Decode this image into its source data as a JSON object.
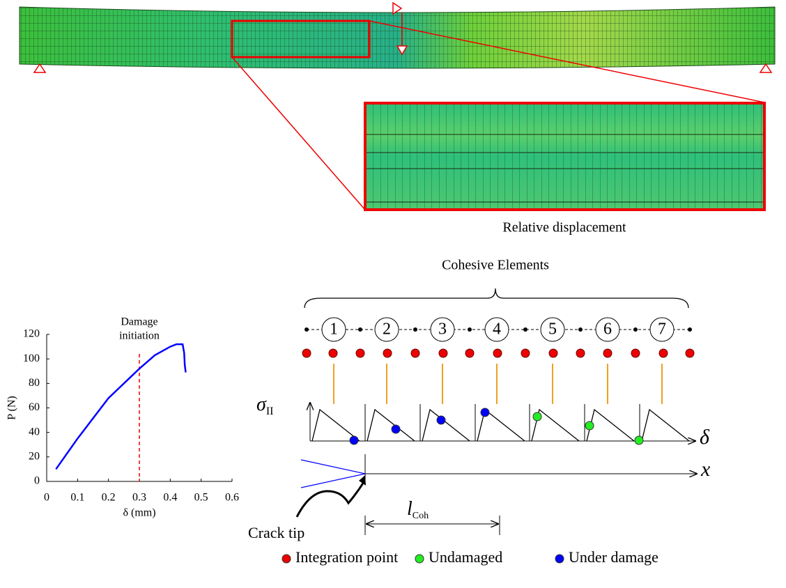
{
  "mesh": {
    "zoom_label": "Relative displacement"
  },
  "chart_data": {
    "type": "line",
    "x_label": "δ (mm)",
    "y_label": "P (N)",
    "annotation": [
      "Damage",
      "initiation"
    ],
    "annotation_x": 0.3,
    "xlim": [
      0,
      0.6
    ],
    "xticks": [
      0,
      0.1,
      0.2,
      0.3,
      0.4,
      0.5,
      0.6
    ],
    "ylim": [
      0,
      120
    ],
    "yticks": [
      0,
      20,
      40,
      60,
      80,
      100,
      120
    ],
    "series": [
      {
        "color": "#0000ff",
        "x": [
          0.03,
          0.1,
          0.2,
          0.3,
          0.35,
          0.4,
          0.42,
          0.44,
          0.445,
          0.447,
          0.45
        ],
        "values": [
          10,
          35,
          68,
          92,
          103,
          110,
          112,
          112,
          105,
          95,
          89
        ]
      }
    ]
  },
  "diagram": {
    "title": "Cohesive Elements",
    "elements": [
      "1",
      "2",
      "3",
      "4",
      "5",
      "6",
      "7"
    ],
    "sigma": "σ",
    "sigma_sub": "II",
    "delta": "δ",
    "x": "x",
    "crack_tip": "Crack tip",
    "l": "l",
    "l_sub": "Coh",
    "legend": [
      "Integration point",
      "Undamaged",
      "Under damage"
    ]
  }
}
